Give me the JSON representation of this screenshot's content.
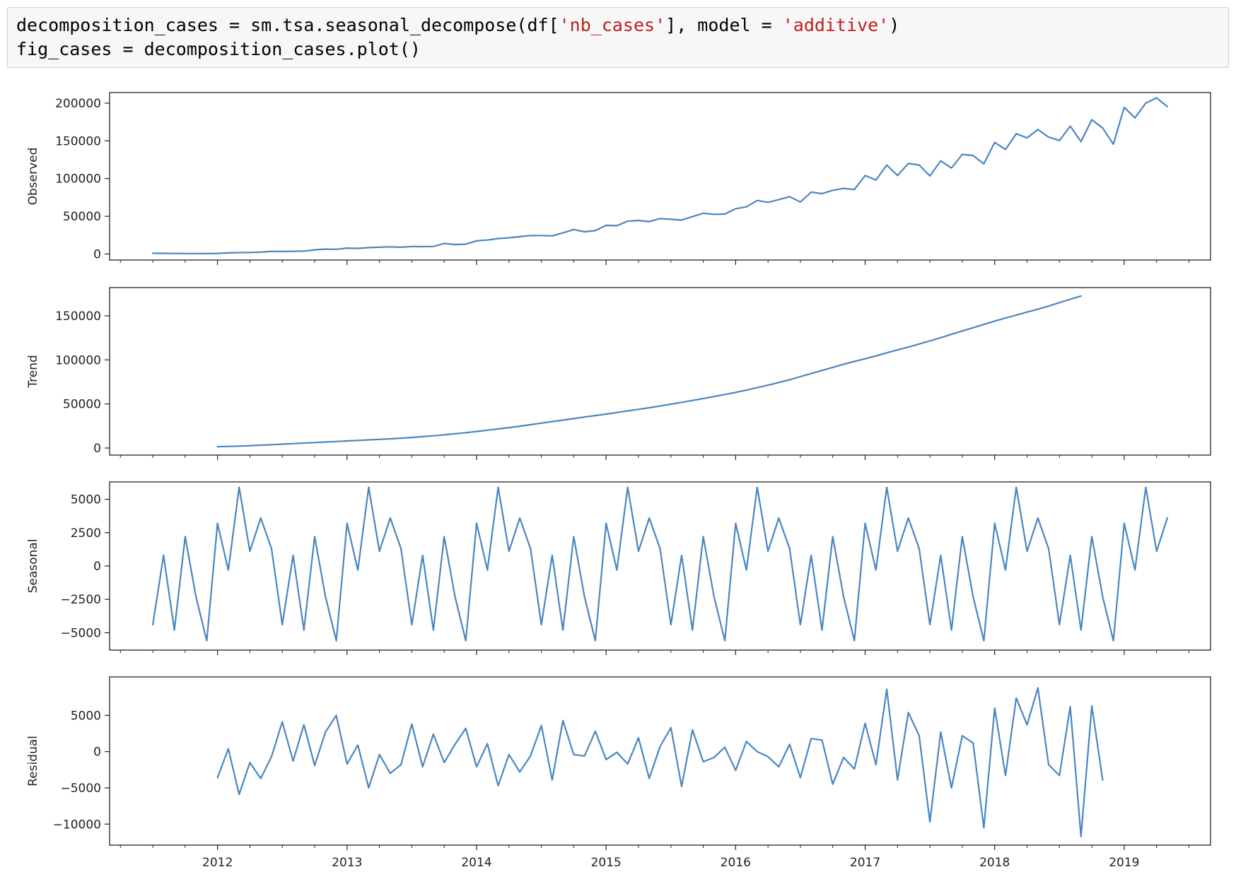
{
  "code": {
    "lines": [
      [
        {
          "t": "decomposition_cases = sm.tsa.seasonal_decompose(df["
        },
        {
          "t": "'nb_cases'",
          "s": true
        },
        {
          "t": "], model = "
        },
        {
          "t": "'additive'",
          "s": true
        },
        {
          "t": ")"
        }
      ],
      [
        {
          "t": "fig_cases = decomposition_cases.plot()"
        }
      ]
    ]
  },
  "colors": {
    "line": "#4a86c0",
    "string": "#ba2121",
    "code_bg": "#f7f7f7"
  },
  "chart_data": {
    "type": "line",
    "x_start": "2011-07",
    "x_end": "2019-05",
    "xlim": [
      "2011-03",
      "2019-09"
    ],
    "x_ticks": [
      "2012",
      "2013",
      "2014",
      "2015",
      "2016",
      "2017",
      "2018",
      "2019"
    ],
    "x_ticks_at": [
      "2012-01",
      "2013-01",
      "2014-01",
      "2015-01",
      "2016-01",
      "2017-01",
      "2018-01",
      "2019-01"
    ],
    "panels": [
      {
        "name": "observed",
        "ylabel": "Observed",
        "ylim": [
          -8000,
          214000
        ],
        "yticks": [
          0,
          50000,
          100000,
          150000,
          200000
        ],
        "ytick_labels": [
          "0",
          "50000",
          "100000",
          "150000",
          "200000"
        ],
        "values": [
          1000,
          800,
          700,
          600,
          600,
          500,
          800,
          1500,
          1800,
          2000,
          2500,
          3500,
          3300,
          3600,
          3800,
          5500,
          6500,
          6200,
          7800,
          7500,
          8500,
          9000,
          9500,
          9000,
          10000,
          9800,
          10000,
          14000,
          12500,
          13000,
          17500,
          18500,
          20500,
          21500,
          23000,
          24500,
          24500,
          24000,
          28000,
          32500,
          29500,
          31000,
          38000,
          37500,
          43500,
          44500,
          43000,
          47000,
          46000,
          45000,
          49500,
          54000,
          52500,
          53000,
          60000,
          62500,
          71000,
          68500,
          72000,
          76000,
          69000,
          82000,
          80000,
          84500,
          87000,
          85500,
          104000,
          98000,
          118000,
          104000,
          120000,
          118000,
          103500,
          123500,
          114000,
          132000,
          130500,
          119500,
          148000,
          138500,
          159500,
          154000,
          165000,
          155000,
          150500,
          169500,
          149000,
          178000,
          167000,
          145500,
          194500,
          180500,
          200000,
          207000,
          195500
        ]
      },
      {
        "name": "trend",
        "ylabel": "Trend",
        "ylim": [
          -8000,
          182000
        ],
        "yticks": [
          0,
          50000,
          100000,
          150000
        ],
        "ytick_labels": [
          "0",
          "50000",
          "100000",
          "150000"
        ],
        "values": [
          null,
          null,
          null,
          null,
          null,
          null,
          1500,
          1800,
          2200,
          2700,
          3200,
          3800,
          4400,
          5000,
          5600,
          6200,
          6800,
          7400,
          8000,
          8600,
          9200,
          9800,
          10400,
          11200,
          12000,
          12900,
          13900,
          15000,
          16200,
          17400,
          18800,
          20200,
          21700,
          23200,
          24800,
          26500,
          28200,
          30000,
          31700,
          33400,
          35100,
          36800,
          38500,
          40300,
          42100,
          43900,
          45700,
          47600,
          49700,
          51800,
          54000,
          56100,
          58400,
          60700,
          63100,
          65700,
          68500,
          71300,
          74300,
          77500,
          81000,
          84500,
          88000,
          91500,
          95000,
          98200,
          101300,
          104500,
          108000,
          111300,
          114500,
          118000,
          121500,
          125200,
          129000,
          132800,
          136500,
          140200,
          144000,
          147500,
          150800,
          154200,
          157500,
          161000,
          165000,
          168800,
          172500,
          null,
          null,
          null,
          null,
          null,
          null,
          null,
          null
        ]
      },
      {
        "name": "seasonal",
        "ylabel": "Seasonal",
        "ylim": [
          -6300,
          6300
        ],
        "yticks": [
          -5000,
          -2500,
          0,
          2500,
          5000
        ],
        "ytick_labels": [
          "−5000",
          "−2500",
          "0",
          "2500",
          "5000"
        ],
        "values": [
          -4400,
          800,
          -4800,
          2200,
          -2300,
          -5600,
          3200,
          -300,
          5900,
          1100,
          3600,
          1300,
          -4400,
          800,
          -4800,
          2200,
          -2300,
          -5600,
          3200,
          -300,
          5900,
          1100,
          3600,
          1300,
          -4400,
          800,
          -4800,
          2200,
          -2300,
          -5600,
          3200,
          -300,
          5900,
          1100,
          3600,
          1300,
          -4400,
          800,
          -4800,
          2200,
          -2300,
          -5600,
          3200,
          -300,
          5900,
          1100,
          3600,
          1300,
          -4400,
          800,
          -4800,
          2200,
          -2300,
          -5600,
          3200,
          -300,
          5900,
          1100,
          3600,
          1300,
          -4400,
          800,
          -4800,
          2200,
          -2300,
          -5600,
          3200,
          -300,
          5900,
          1100,
          3600,
          1300,
          -4400,
          800,
          -4800,
          2200,
          -2300,
          -5600,
          3200,
          -300,
          5900,
          1100,
          3600,
          1300,
          -4400,
          800,
          -4800,
          2200,
          -2300,
          -5600,
          3200,
          -300,
          5900,
          1100,
          3600
        ]
      },
      {
        "name": "residual",
        "ylabel": "Residual",
        "ylim": [
          -12900,
          10300
        ],
        "yticks": [
          -10000,
          -5000,
          0,
          5000
        ],
        "ytick_labels": [
          "−10000",
          "−5000",
          "0",
          "5000"
        ],
        "values": [
          null,
          null,
          null,
          null,
          null,
          null,
          -3600,
          400,
          -5900,
          -1500,
          -3700,
          -700,
          4100,
          -1300,
          3700,
          -1900,
          2700,
          5000,
          -1700,
          900,
          -5000,
          -400,
          -3000,
          -1800,
          3800,
          -2100,
          2400,
          -1500,
          1000,
          3200,
          -2100,
          1100,
          -4700,
          -400,
          -2800,
          -600,
          3600,
          -3900,
          4300,
          -400,
          -600,
          2800,
          -1100,
          -100,
          -1700,
          1900,
          -3700,
          700,
          3300,
          -4800,
          3000,
          -1400,
          -800,
          600,
          -2600,
          1400,
          0,
          -700,
          -2100,
          1000,
          -3600,
          1800,
          1600,
          -4500,
          -800,
          -2400,
          3900,
          -1800,
          8600,
          -3900,
          5400,
          2200,
          -9700,
          2700,
          -5000,
          2200,
          1200,
          -10500,
          6000,
          -3300,
          7400,
          3700,
          8800,
          -1800,
          -3300,
          6200,
          -11700,
          6300,
          -3900,
          null,
          null,
          null,
          null,
          null,
          null
        ]
      }
    ]
  }
}
